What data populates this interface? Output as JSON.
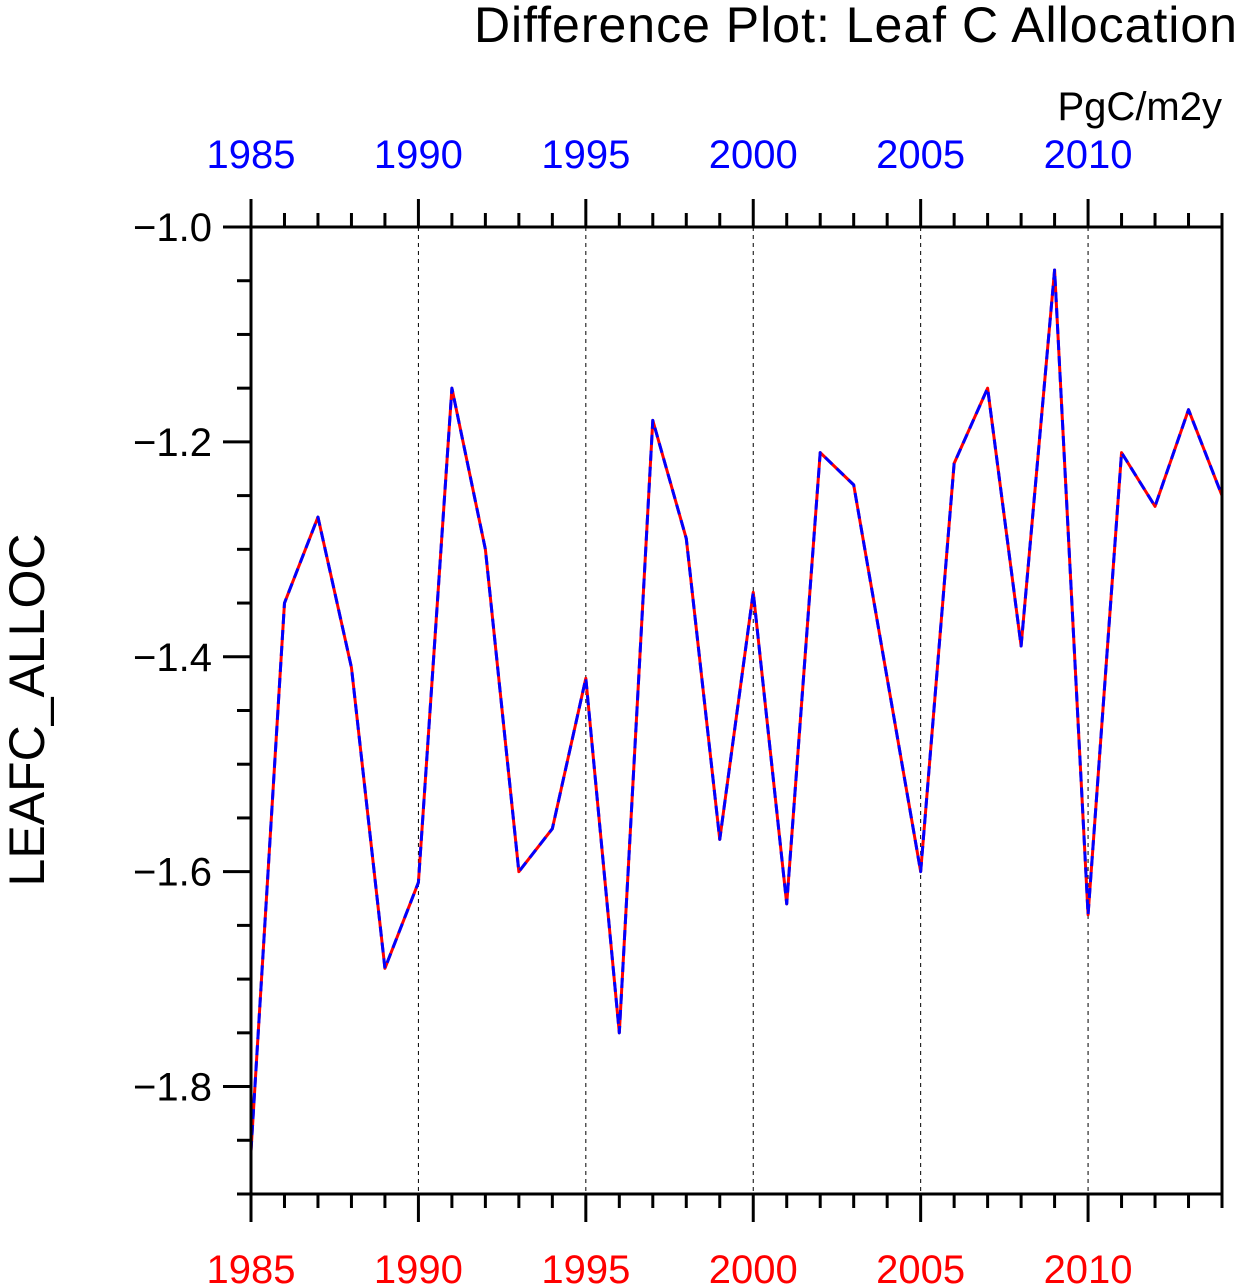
{
  "chart_data": {
    "type": "line",
    "title": "Difference Plot: Leaf C Allocation",
    "units": "PgC/m2y",
    "ylabel": "LEAFC_ALLOC",
    "xlabel": "",
    "xlim": [
      1985,
      2014
    ],
    "ylim": [
      -1.9,
      -1.0
    ],
    "yticks": [
      -1.0,
      -1.2,
      -1.4,
      -1.6,
      -1.8
    ],
    "ytick_labels": [
      "−1.0",
      "−1.2",
      "−1.4",
      "−1.6",
      "−1.8"
    ],
    "xticks": [
      1985,
      1990,
      1995,
      2000,
      2005,
      2010
    ],
    "xtick_labels_top": [
      "1985",
      "1990",
      "1995",
      "2000",
      "2005",
      "2010"
    ],
    "xtick_labels_bottom": [
      "1985",
      "1990",
      "1995",
      "2000",
      "2005",
      "2010"
    ],
    "top_axis_color": "#0000ff",
    "bottom_axis_color": "#ff0000",
    "grid": "vertical dashed at major x ticks",
    "x": [
      1985,
      1986,
      1987,
      1988,
      1989,
      1990,
      1991,
      1992,
      1993,
      1994,
      1995,
      1996,
      1997,
      1998,
      1999,
      2000,
      2001,
      2002,
      2003,
      2004,
      2005,
      2006,
      2007,
      2008,
      2009,
      2010,
      2011,
      2012,
      2013,
      2014
    ],
    "series": [
      {
        "color": "#ff0000",
        "style": "solid",
        "values": [
          -1.86,
          -1.35,
          -1.27,
          -1.41,
          -1.69,
          -1.61,
          -1.15,
          -1.3,
          -1.6,
          -1.56,
          -1.42,
          -1.75,
          -1.18,
          -1.29,
          -1.57,
          -1.34,
          -1.63,
          -1.21,
          -1.24,
          -1.42,
          -1.6,
          -1.22,
          -1.15,
          -1.39,
          -1.04,
          -1.64,
          -1.21,
          -1.26,
          -1.17,
          -1.25
        ]
      },
      {
        "color": "#0000ff",
        "style": "dashed",
        "values": [
          -1.86,
          -1.35,
          -1.27,
          -1.41,
          -1.69,
          -1.61,
          -1.15,
          -1.3,
          -1.6,
          -1.56,
          -1.42,
          -1.75,
          -1.18,
          -1.29,
          -1.57,
          -1.34,
          -1.63,
          -1.21,
          -1.24,
          -1.42,
          -1.6,
          -1.22,
          -1.15,
          -1.39,
          -1.04,
          -1.64,
          -1.21,
          -1.26,
          -1.17,
          -1.25
        ]
      }
    ]
  }
}
